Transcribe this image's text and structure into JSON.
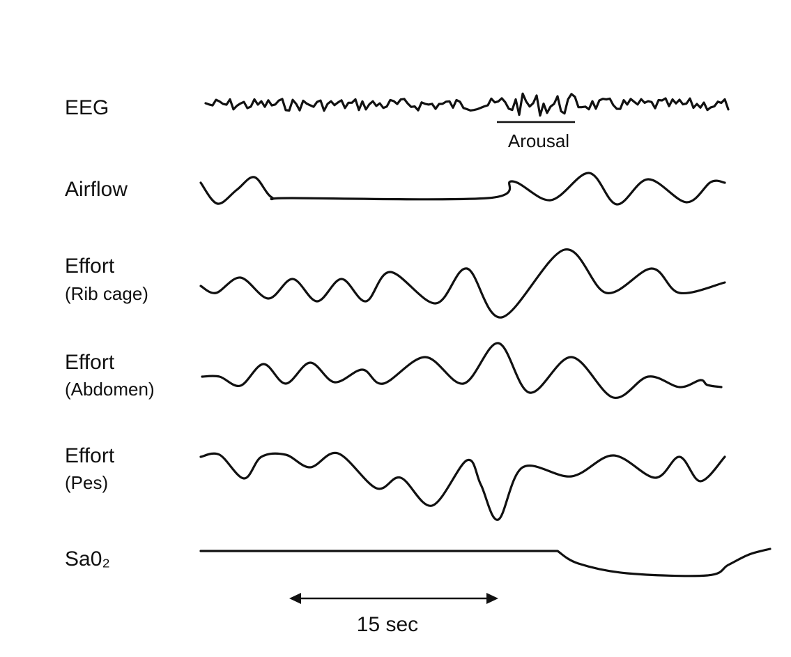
{
  "traces": [
    {
      "label": "EEG"
    },
    {
      "label": "Airflow"
    },
    {
      "label": "Effort",
      "sublabel": "(Rib cage)"
    },
    {
      "label": "Effort",
      "sublabel": "(Abdomen)"
    },
    {
      "label": "Effort",
      "sublabel": "(Pes)"
    },
    {
      "label": "Sa0₂"
    }
  ],
  "annotations": {
    "arousal": "Arousal"
  },
  "scale": {
    "label": "15 sec"
  }
}
